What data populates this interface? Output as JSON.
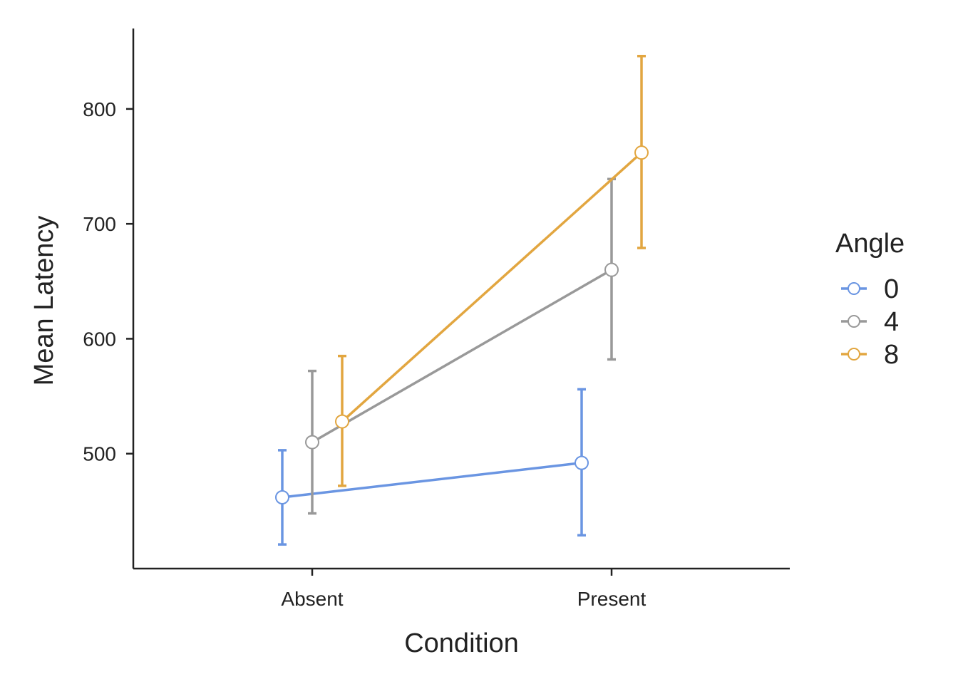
{
  "chart_data": {
    "type": "line",
    "title": "",
    "xlabel": "Condition",
    "ylabel": "Mean Latency",
    "categories": [
      "Absent",
      "Present"
    ],
    "ylim": [
      400,
      870
    ],
    "yticks": [
      500,
      600,
      700,
      800
    ],
    "grid": false,
    "legend": {
      "title": "Angle",
      "position": "right"
    },
    "error_bars": true,
    "series": [
      {
        "name": "0",
        "color": "#6a95e2",
        "values": [
          462,
          492
        ],
        "err_low": [
          421,
          429
        ],
        "err_high": [
          503,
          556
        ]
      },
      {
        "name": "4",
        "color": "#999999",
        "values": [
          510,
          660
        ],
        "err_low": [
          448,
          582
        ],
        "err_high": [
          572,
          739
        ]
      },
      {
        "name": "8",
        "color": "#e2a640",
        "values": [
          528,
          762
        ],
        "err_low": [
          472,
          679
        ],
        "err_high": [
          585,
          846
        ]
      }
    ]
  }
}
